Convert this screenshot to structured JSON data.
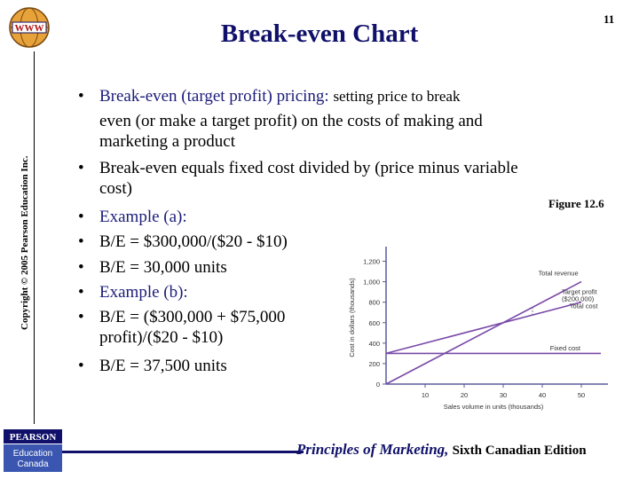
{
  "slide": {
    "title": "Break-even Chart",
    "page_number": "11",
    "copyright": "Copyright © 2005 Pearson Education Inc.",
    "logo_text": "WWW",
    "figure_label": "Figure 12.6"
  },
  "bullets": [
    {
      "lead": "Break-even (target profit) pricing:",
      "rest": "setting price to break"
    },
    {
      "text": "even (or make a target profit) on the costs of making and"
    },
    {
      "text": "marketing a product"
    },
    {
      "text": "Break-even equals fixed cost divided by (price minus variable"
    },
    {
      "text": "cost)"
    },
    {
      "text": "Example (a):"
    },
    {
      "text": "B/E = $300,000/($20 - $10)"
    },
    {
      "text": "B/E = 30,000 units"
    },
    {
      "text": "Example (b):"
    },
    {
      "text": "B/E = ($300,000 + $75,000"
    },
    {
      "text": "profit)/($20 - $10)"
    },
    {
      "text": "B/E = 37,500 units"
    }
  ],
  "chart_data": {
    "type": "line",
    "xlabel": "Sales volume in units (thousands)",
    "ylabel": "Cost in dollars (thousands)",
    "xlim": [
      0,
      55
    ],
    "ylim": [
      0,
      1300
    ],
    "x_ticks": [
      "10",
      "20",
      "30",
      "40",
      "50"
    ],
    "y_ticks": [
      "0",
      "200",
      "400",
      "600",
      "800",
      "1,000",
      "1,200"
    ],
    "series": [
      {
        "name": "Total revenue",
        "x": [
          0,
          50
        ],
        "y": [
          0,
          1000
        ]
      },
      {
        "name": "Total cost",
        "x": [
          0,
          50
        ],
        "y": [
          300,
          800
        ]
      },
      {
        "name": "Fixed cost",
        "x": [
          0,
          55
        ],
        "y": [
          300,
          300
        ]
      }
    ],
    "annotations": {
      "target_profit": "Target profit ($200,000)"
    },
    "colors": {
      "lines": "#7a4aa8",
      "axis": "#5a5a9a"
    }
  },
  "footer": {
    "book": "Principles of Marketing,",
    "edition": "Sixth Canadian Edition",
    "publisher_top": "PEARSON",
    "publisher_bottom_1": "Education",
    "publisher_bottom_2": "Canada"
  }
}
